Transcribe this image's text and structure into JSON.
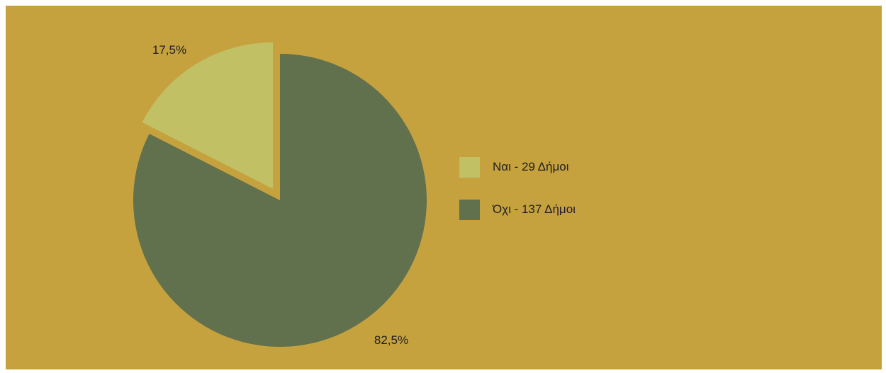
{
  "chart_data": {
    "type": "pie",
    "title": "",
    "categories": [
      "Ναι - 29 Δήμοι",
      "Όχι - 137 Δήμοι"
    ],
    "values": [
      17.5,
      82.5
    ],
    "counts": [
      29,
      137
    ],
    "data_labels": [
      "17,5%",
      "82,5%"
    ],
    "exploded": [
      true,
      false
    ],
    "legend_position": "right",
    "colors": {
      "background": "#c6a23f",
      "slices": [
        "#c1c065",
        "#61704d"
      ]
    }
  },
  "legend": {
    "items": [
      {
        "label": "Ναι - 29 Δήμοι",
        "color": "#c1c065"
      },
      {
        "label": "Όχι - 137 Δήμοι",
        "color": "#61704d"
      }
    ]
  }
}
